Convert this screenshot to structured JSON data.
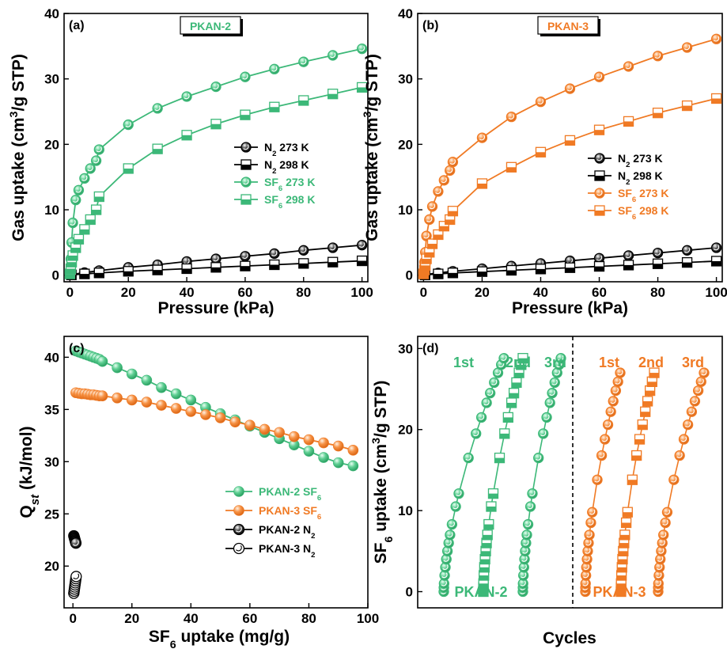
{
  "colors": {
    "green": "#3cb878",
    "orange": "#f07a24",
    "black": "#000000"
  },
  "chart_data": [
    {
      "panel": "(a)",
      "type": "scatter",
      "title": "PKAN-2",
      "xlabel": "Pressure (kPa)",
      "ylabel": "Gas uptake (cm³/g STP)",
      "xlim": [
        -2,
        102
      ],
      "ylim": [
        -1,
        40
      ],
      "xticks": [
        0,
        20,
        40,
        60,
        80,
        100
      ],
      "yticks": [
        0,
        10,
        20,
        30,
        40
      ],
      "legend": "center-right",
      "series": [
        {
          "name": "N2 273 K",
          "marker": "circle-half",
          "color": "#000000",
          "x": [
            0.5,
            5,
            10,
            20,
            30,
            40,
            50,
            60,
            70,
            80,
            90,
            100
          ],
          "y": [
            0.1,
            0.4,
            0.7,
            1.2,
            1.6,
            2.1,
            2.5,
            2.9,
            3.3,
            3.8,
            4.2,
            4.6
          ]
        },
        {
          "name": "N2 298 K",
          "marker": "square-half",
          "color": "#000000",
          "x": [
            0.5,
            5,
            10,
            20,
            30,
            40,
            50,
            60,
            70,
            80,
            90,
            100
          ],
          "y": [
            0.05,
            0.2,
            0.35,
            0.6,
            0.8,
            1.0,
            1.2,
            1.4,
            1.6,
            1.8,
            2.0,
            2.2
          ]
        },
        {
          "name": "SF6 273 K",
          "marker": "circle-half",
          "color": "#3cb878",
          "x": [
            0,
            0.3,
            0.6,
            1,
            2,
            3,
            5,
            7,
            9,
            10,
            20,
            30,
            40,
            50,
            60,
            70,
            80,
            90,
            100
          ],
          "y": [
            0.5,
            2.5,
            5,
            8,
            11.5,
            13,
            14.8,
            16.3,
            17.5,
            19.2,
            23,
            25.5,
            27.3,
            28.8,
            30.3,
            31.5,
            32.6,
            33.6,
            34.6
          ]
        },
        {
          "name": "SF6 298 K",
          "marker": "square-half",
          "color": "#3cb878",
          "x": [
            0,
            0.3,
            0.6,
            1,
            2,
            3,
            5,
            7,
            9,
            10,
            20,
            30,
            40,
            50,
            60,
            70,
            80,
            90,
            100
          ],
          "y": [
            0.2,
            1,
            2,
            3,
            4.2,
            5.5,
            7,
            8.5,
            10,
            12,
            16.3,
            19.3,
            21.4,
            23.1,
            24.5,
            25.7,
            26.7,
            27.7,
            28.7
          ]
        }
      ]
    },
    {
      "panel": "(b)",
      "type": "scatter",
      "title": "PKAN-3",
      "xlabel": "Pressure (kPa)",
      "ylabel": "Gas uptake (cm³/g STP)",
      "xlim": [
        -2,
        102
      ],
      "ylim": [
        -1,
        40
      ],
      "xticks": [
        0,
        20,
        40,
        60,
        80,
        100
      ],
      "yticks": [
        0,
        10,
        20,
        30,
        40
      ],
      "legend": "center-right",
      "series": [
        {
          "name": "N2 273 K",
          "marker": "circle-half",
          "color": "#000000",
          "x": [
            0.5,
            5,
            10,
            20,
            30,
            40,
            50,
            60,
            70,
            80,
            90,
            100
          ],
          "y": [
            0.1,
            0.35,
            0.6,
            1.0,
            1.4,
            1.8,
            2.2,
            2.6,
            3.0,
            3.4,
            3.8,
            4.2
          ]
        },
        {
          "name": "N2 298 K",
          "marker": "square-half",
          "color": "#000000",
          "x": [
            0.5,
            5,
            10,
            20,
            30,
            40,
            50,
            60,
            70,
            80,
            90,
            100
          ],
          "y": [
            0.05,
            0.2,
            0.35,
            0.55,
            0.75,
            0.95,
            1.15,
            1.35,
            1.55,
            1.75,
            1.95,
            2.15
          ]
        },
        {
          "name": "SF6 273 K",
          "marker": "circle-half",
          "color": "#f07a24",
          "x": [
            0,
            0.3,
            0.6,
            1,
            2,
            3,
            5,
            7,
            9,
            10,
            20,
            30,
            40,
            50,
            60,
            70,
            80,
            90,
            100
          ],
          "y": [
            0.5,
            2,
            3.5,
            6,
            8.5,
            10.5,
            12.8,
            14.5,
            16,
            17.3,
            21,
            24.2,
            26.5,
            28.5,
            30.3,
            31.9,
            33.5,
            34.8,
            36.1
          ]
        },
        {
          "name": "SF6 298 K",
          "marker": "square-half",
          "color": "#f07a24",
          "x": [
            0,
            0.3,
            0.6,
            1,
            2,
            3,
            5,
            7,
            9,
            10,
            20,
            30,
            40,
            50,
            60,
            70,
            80,
            90,
            100
          ],
          "y": [
            0.2,
            0.8,
            1.5,
            2.5,
            3.5,
            4.8,
            6.2,
            7.5,
            8.5,
            9.8,
            14,
            16.5,
            18.8,
            20.6,
            22.2,
            23.5,
            24.8,
            25.9,
            27
          ]
        }
      ]
    },
    {
      "panel": "(c)",
      "type": "scatter",
      "xlabel": "SF6 uptake (mg/g)",
      "ylabel": "Qst (kJ/mol)",
      "xlim": [
        -3,
        100
      ],
      "ylim": [
        16,
        42
      ],
      "xticks": [
        0,
        20,
        40,
        60,
        80,
        100
      ],
      "yticks": [
        20,
        25,
        30,
        35,
        40
      ],
      "legend": "lower-right",
      "series": [
        {
          "name": "PKAN-2 SF6",
          "marker": "circle-filled",
          "color": "#3cb878",
          "x": [
            1,
            2,
            3,
            4,
            5,
            6,
            7,
            8,
            9,
            10,
            15,
            20,
            25,
            30,
            35,
            40,
            45,
            50,
            55,
            60,
            65,
            70,
            75,
            80,
            85,
            90,
            95
          ],
          "y": [
            40.6,
            40.5,
            40.4,
            40.3,
            40.2,
            40.1,
            40.0,
            39.9,
            39.8,
            39.6,
            39.0,
            38.4,
            37.8,
            37.1,
            36.5,
            35.9,
            35.2,
            34.6,
            34.0,
            33.4,
            32.8,
            32.2,
            31.6,
            31.0,
            30.4,
            29.9,
            29.6
          ]
        },
        {
          "name": "PKAN-3 SF6",
          "marker": "circle-filled",
          "color": "#f07a24",
          "x": [
            1,
            2,
            3,
            4,
            5,
            6,
            7,
            8,
            9,
            10,
            15,
            20,
            25,
            30,
            35,
            40,
            45,
            50,
            55,
            60,
            65,
            70,
            75,
            80,
            85,
            90,
            95
          ],
          "y": [
            36.6,
            36.55,
            36.5,
            36.5,
            36.45,
            36.4,
            36.4,
            36.35,
            36.3,
            36.3,
            36.1,
            35.9,
            35.7,
            35.4,
            35.1,
            34.8,
            34.5,
            34.2,
            33.8,
            33.5,
            33.1,
            32.8,
            32.4,
            32.1,
            31.8,
            31.5,
            31.1
          ]
        },
        {
          "name": "PKAN-2 N2",
          "marker": "circle-half",
          "color": "#000000",
          "x": [
            0.3,
            0.4,
            0.5,
            0.6,
            0.7,
            0.8,
            0.9,
            1.0
          ],
          "y": [
            22.9,
            22.8,
            22.7,
            22.6,
            22.5,
            22.4,
            22.3,
            22.2
          ]
        },
        {
          "name": "PKAN-3 N2",
          "marker": "circle-open",
          "color": "#000000",
          "x": [
            0.3,
            0.4,
            0.5,
            0.6,
            0.7,
            0.8,
            0.9,
            1.0,
            1.1
          ],
          "y": [
            17.4,
            17.6,
            17.8,
            18.0,
            18.2,
            18.4,
            18.6,
            18.8,
            19.0
          ]
        }
      ]
    },
    {
      "panel": "(d)",
      "type": "scatter",
      "xlabel": "Cycles",
      "ylabel": "SF6 uptake (cm³/g STP)",
      "ylim": [
        -2,
        31.5
      ],
      "yticks": [
        0,
        10,
        20,
        30
      ],
      "legend": "none",
      "y_levels": [
        0.0,
        0.5,
        1.0,
        2.0,
        3.0,
        4.0,
        5.0,
        6.0,
        7.0,
        8.3,
        10.5,
        12.1,
        16.5,
        19.5,
        21.5,
        23.3,
        24.5,
        25.8,
        27.0,
        28.0,
        28.8
      ],
      "y_levels_pkan3": [
        0.0,
        0.5,
        1.0,
        2.0,
        3.0,
        4.0,
        5.0,
        6.0,
        7.0,
        8.5,
        9.8,
        13.8,
        16.8,
        18.8,
        20.6,
        22.2,
        23.5,
        24.8,
        25.9,
        27.0
      ],
      "groups": [
        {
          "name": "PKAN-2",
          "color": "#3cb878",
          "cycles": [
            "1st",
            "2nd",
            "3rd"
          ],
          "markers": [
            "circle-half",
            "square-half",
            "circle-half"
          ]
        },
        {
          "name": "PKAN-3",
          "color": "#f07a24",
          "cycles": [
            "1st",
            "2nd",
            "3rd"
          ],
          "markers": [
            "circle-half",
            "square-half",
            "circle-half"
          ]
        }
      ]
    }
  ]
}
